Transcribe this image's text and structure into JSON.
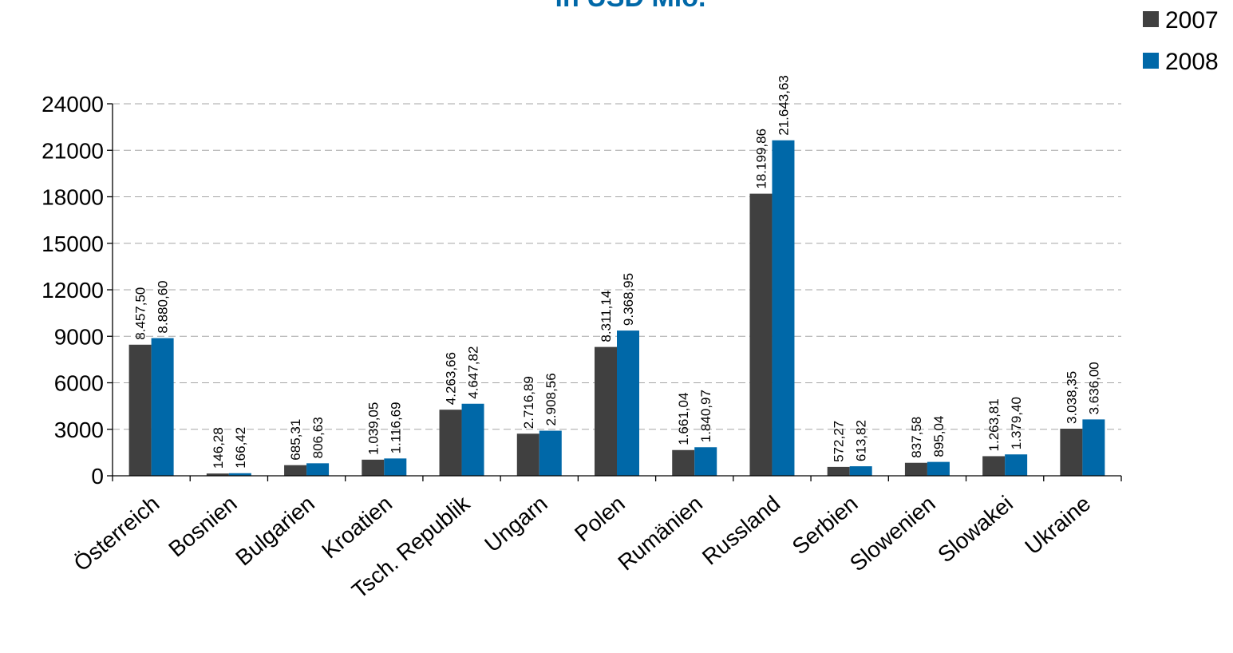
{
  "chart_data": {
    "type": "bar",
    "title": "in USD Mio.",
    "xlabel": "",
    "ylabel": "",
    "ylim": [
      0,
      24000
    ],
    "yticks": [
      0,
      3000,
      6000,
      9000,
      12000,
      15000,
      18000,
      21000,
      24000
    ],
    "grid": true,
    "legend_position": "top-right",
    "categories": [
      "Österreich",
      "Bosnien",
      "Bulgarien",
      "Kroatien",
      "Tsch. Republik",
      "Ungarn",
      "Polen",
      "Rumänien",
      "Russland",
      "Serbien",
      "Slowenien",
      "Slowakei",
      "Ukraine"
    ],
    "series": [
      {
        "name": "2007",
        "color": "#404040",
        "values": [
          8457.5,
          146.28,
          685.31,
          1039.05,
          4263.66,
          2716.89,
          8311.14,
          1661.04,
          18199.86,
          572.27,
          837.58,
          1263.81,
          3038.35
        ],
        "labels": [
          "8.457,50",
          "146,28",
          "685,31",
          "1.039,05",
          "4.263,66",
          "2.716,89",
          "8.311,14",
          "1.661,04",
          "18.199,86",
          "572,27",
          "837,58",
          "1.263,81",
          "3.038,35"
        ]
      },
      {
        "name": "2008",
        "color": "#0068a8",
        "values": [
          8880.6,
          166.42,
          806.63,
          1116.69,
          4647.82,
          2908.56,
          9368.95,
          1840.97,
          21643.63,
          613.82,
          895.04,
          1379.4,
          3636.0
        ],
        "labels": [
          "8.880,60",
          "166,42",
          "806,63",
          "1.116,69",
          "4.647,82",
          "2.908,56",
          "9.368,95",
          "1.840,97",
          "21.643,63",
          "613,82",
          "895,04",
          "1.379,40",
          "3.636,00"
        ]
      }
    ],
    "title_color": "#0068a8"
  }
}
